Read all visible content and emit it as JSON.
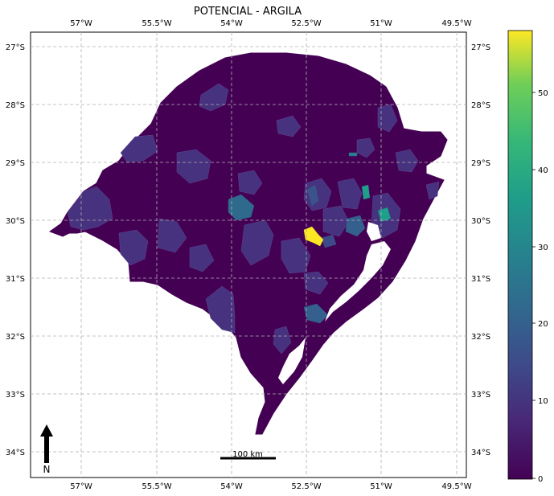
{
  "title": "POTENCIAL - ARGILA",
  "x_ticks": [
    "57°W",
    "55.5°W",
    "54°W",
    "52.5°W",
    "51°W",
    "49.5°W"
  ],
  "y_ticks": [
    "27°S",
    "28°S",
    "29°S",
    "30°S",
    "31°S",
    "32°S",
    "33°S",
    "34°S"
  ],
  "colorbar": {
    "colormap": "viridis",
    "ticks": [
      "0",
      "10",
      "20",
      "30",
      "40",
      "50"
    ],
    "range": [
      0,
      57
    ]
  },
  "scale_bar": {
    "label": "100 km"
  },
  "north_arrow": {
    "label": "N"
  },
  "colors": {
    "region_base": "#440154",
    "region_low": "#46327e",
    "region_mid": "#365c8d",
    "region_teal": "#1f9e89",
    "region_max": "#fde725",
    "gridline": "#b0b0b0"
  }
}
